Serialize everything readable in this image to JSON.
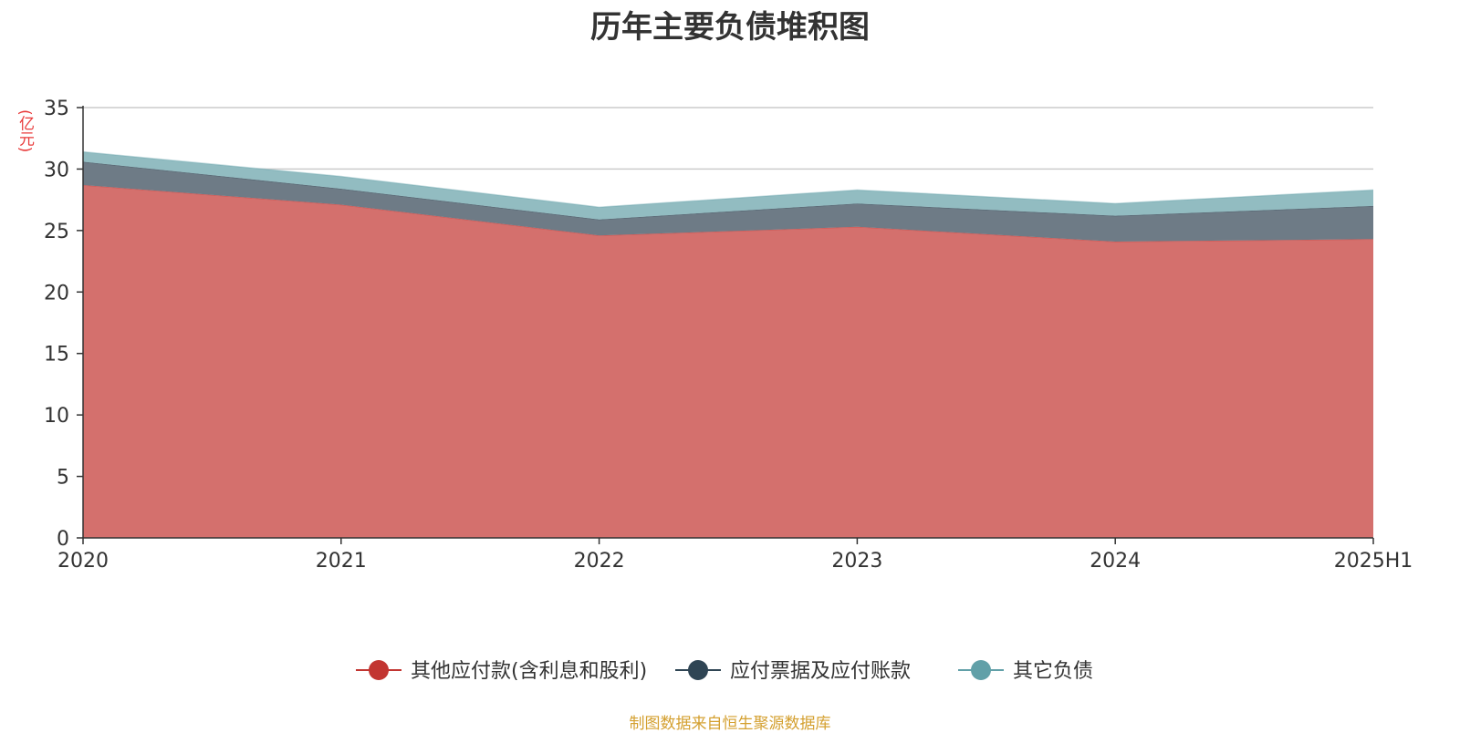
{
  "title": "历年主要负债堆积图",
  "unit_label": "(亿元)",
  "source": "制图数据来自恒生聚源数据库",
  "colors": {
    "unit": "#e83a3a",
    "source": "#d4a030",
    "axis": "#333333",
    "grid": "#cccccc",
    "tick_text": "#333333"
  },
  "chart_data": {
    "type": "area",
    "stacked": true,
    "categories": [
      "2020",
      "2021",
      "2022",
      "2023",
      "2024",
      "2025H1"
    ],
    "series": [
      {
        "name": "其他应付款(含利息和股利)",
        "color": "#c23531",
        "fill": "#d4706d",
        "values": [
          28.7,
          27.1,
          24.6,
          25.3,
          24.1,
          24.3
        ]
      },
      {
        "name": "应付票据及应付账款",
        "color": "#2f4554",
        "fill": "#6e7b86",
        "values": [
          1.9,
          1.3,
          1.3,
          1.9,
          2.1,
          2.7
        ]
      },
      {
        "name": "其它负债",
        "color": "#61a0a8",
        "fill": "#92bcc1",
        "values": [
          0.8,
          1.0,
          1.0,
          1.1,
          1.0,
          1.3
        ]
      }
    ],
    "y_ticks": [
      0,
      5,
      10,
      15,
      20,
      25,
      30,
      35
    ],
    "ylim": [
      0,
      35
    ],
    "grid": true,
    "legend_position": "bottom"
  }
}
